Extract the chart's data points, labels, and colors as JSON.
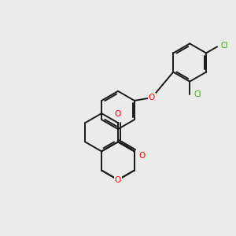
{
  "background_color": "#ebebeb",
  "bond_color": "#1a1a1a",
  "oxygen_color": "#ff0000",
  "chlorine_color": "#33aa00",
  "bond_width": 1.4,
  "figsize": [
    3.0,
    3.0
  ],
  "dpi": 100,
  "xlim": [
    0,
    10
  ],
  "ylim": [
    0,
    10
  ]
}
